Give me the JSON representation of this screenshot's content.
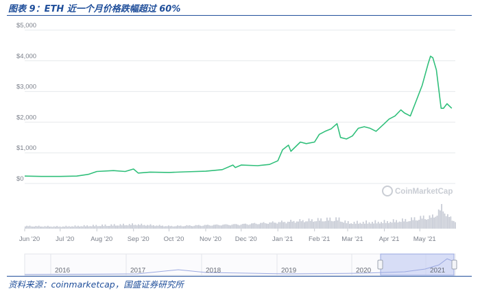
{
  "figure": {
    "title": "图表 9：ETH 近一个月价格跌幅超过 60%",
    "source": "资料来源：coinmarketcap，国盛证券研究所"
  },
  "watermark": {
    "text": "CoinMarketCap"
  },
  "colors": {
    "line": "#2fbf7a",
    "volume": "#c8ccd6",
    "grid": "#e6e8ec",
    "nav_fill": "#c7d0f2",
    "nav_line": "#9aa8e0"
  },
  "chart_data": {
    "type": "line",
    "title": "",
    "xlabel": "",
    "ylabel": "",
    "y_ticks": [
      "$0",
      "$1,000",
      "$2,000",
      "$3,000",
      "$4,000",
      "$5,000"
    ],
    "ylim": [
      0,
      5000
    ],
    "x_ticks": [
      "Jun '20",
      "Jul '20",
      "Aug '20",
      "Sep '20",
      "Oct '20",
      "Nov '20",
      "Dec '20",
      "Jan '21",
      "Feb '21",
      "Mar '21",
      "Apr '21",
      "May '21"
    ],
    "grid": true,
    "series": [
      {
        "x": [
          "2020-06-01",
          "2020-06-15",
          "2020-07-01",
          "2020-07-15",
          "2020-07-25",
          "2020-08-01",
          "2020-08-15",
          "2020-08-25",
          "2020-09-01",
          "2020-09-05",
          "2020-09-15",
          "2020-10-01",
          "2020-10-15",
          "2020-11-01",
          "2020-11-15",
          "2020-11-24",
          "2020-11-26",
          "2020-12-01",
          "2020-12-15",
          "2020-12-25",
          "2021-01-01",
          "2021-01-05",
          "2021-01-10",
          "2021-01-12",
          "2021-01-20",
          "2021-01-25",
          "2021-02-01",
          "2021-02-05",
          "2021-02-10",
          "2021-02-15",
          "2021-02-20",
          "2021-02-23",
          "2021-02-28",
          "2021-03-05",
          "2021-03-10",
          "2021-03-15",
          "2021-03-20",
          "2021-03-25",
          "2021-04-01",
          "2021-04-05",
          "2021-04-10",
          "2021-04-15",
          "2021-04-18",
          "2021-04-23",
          "2021-04-28",
          "2021-05-03",
          "2021-05-08",
          "2021-05-10",
          "2021-05-12",
          "2021-05-15",
          "2021-05-19",
          "2021-05-21",
          "2021-05-24",
          "2021-05-28"
        ],
        "values": [
          240,
          230,
          230,
          240,
          300,
          390,
          420,
          390,
          470,
          340,
          370,
          360,
          380,
          400,
          450,
          600,
          520,
          600,
          580,
          620,
          740,
          1100,
          1250,
          1050,
          1350,
          1300,
          1350,
          1600,
          1700,
          1780,
          1950,
          1500,
          1450,
          1550,
          1800,
          1850,
          1800,
          1700,
          1950,
          2100,
          2200,
          2400,
          2300,
          2200,
          2700,
          3200,
          3900,
          4150,
          4100,
          3700,
          2450,
          2450,
          2600,
          2450
        ]
      }
    ],
    "volume": {
      "x": [
        "2020-06-01",
        "2020-07-01",
        "2020-08-01",
        "2020-09-01",
        "2020-10-01",
        "2020-11-01",
        "2020-12-01",
        "2021-01-01",
        "2021-01-15",
        "2021-02-01",
        "2021-02-20",
        "2021-03-01",
        "2021-04-01",
        "2021-04-20",
        "2021-05-01",
        "2021-05-12",
        "2021-05-19",
        "2021-05-28"
      ],
      "values": [
        0.12,
        0.1,
        0.15,
        0.2,
        0.12,
        0.16,
        0.2,
        0.3,
        0.35,
        0.4,
        0.45,
        0.28,
        0.32,
        0.4,
        0.5,
        0.55,
        0.95,
        0.38
      ]
    },
    "navigator": {
      "year_ticks": [
        "2016",
        "2017",
        "2018",
        "2019",
        "2020",
        "2021"
      ]
    }
  }
}
